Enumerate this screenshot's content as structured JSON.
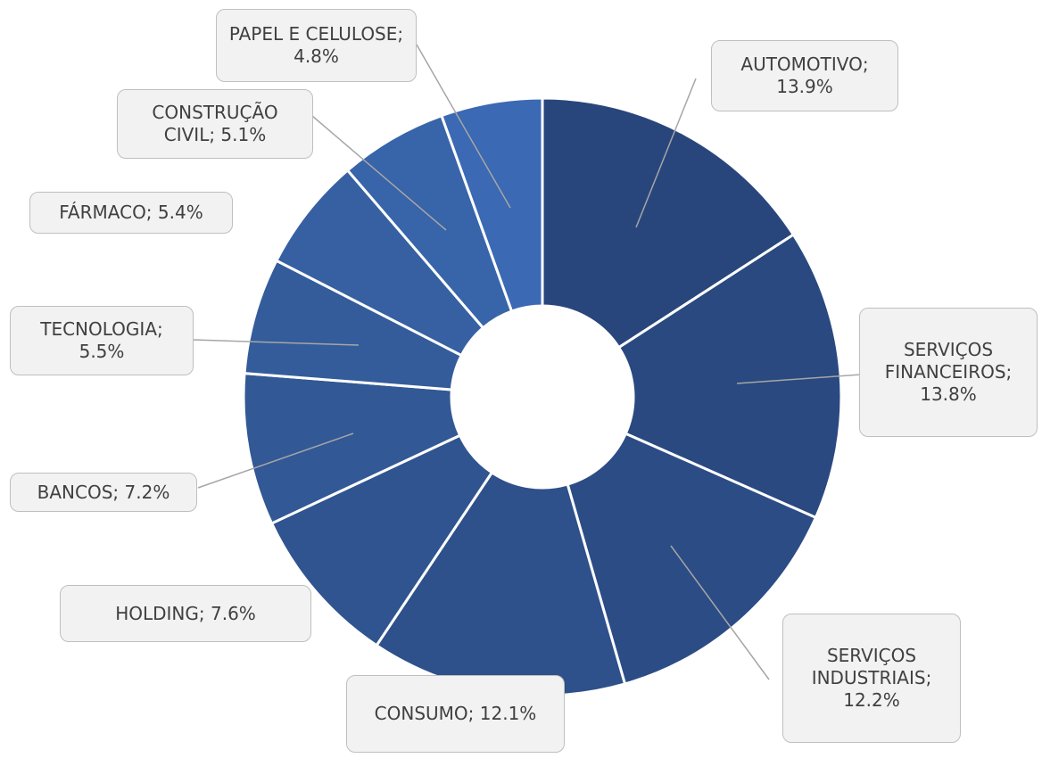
{
  "chart_data": {
    "type": "donut",
    "labels": [
      "AUTOMOTIVO; 13.9%",
      "SERVIÇOS FINANCEIROS; 13.8%",
      "SERVIÇOS INDUSTRIAIS; 12.2%",
      "CONSUMO; 12.1%",
      "HOLDING; 7.6%",
      "BANCOS; 7.2%",
      "TECNOLOGIA; 5.5%",
      "FÁRMACO; 5.4%",
      "CONSTRUÇÃO CIVIL; 5.1%",
      "PAPEL E CELULOSE; 4.8%"
    ],
    "values": [
      13.9,
      13.8,
      12.2,
      12.1,
      7.6,
      7.2,
      5.5,
      5.4,
      5.1,
      4.8
    ],
    "colors": [
      "#29467c",
      "#2a4980",
      "#2c4c85",
      "#2e508b",
      "#305490",
      "#325895",
      "#345c9b",
      "#3660a2",
      "#3864a9",
      "#3b69b3"
    ]
  }
}
